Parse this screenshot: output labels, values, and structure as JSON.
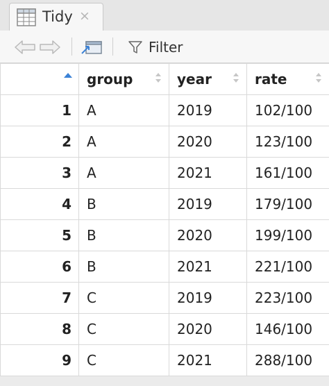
{
  "tab": {
    "title": "Tidy",
    "close_glyph": "×",
    "icon": "table-grid-icon"
  },
  "toolbar": {
    "back_icon": "back-arrow-icon",
    "forward_icon": "forward-arrow-icon",
    "popout_icon": "popout-window-icon",
    "filter_icon": "funnel-icon",
    "filter_label": "Filter"
  },
  "table": {
    "columns": [
      "group",
      "year",
      "rate"
    ],
    "rows": [
      {
        "n": "1",
        "group": "A",
        "year": "2019",
        "rate": "102/100"
      },
      {
        "n": "2",
        "group": "A",
        "year": "2020",
        "rate": "123/100"
      },
      {
        "n": "3",
        "group": "A",
        "year": "2021",
        "rate": "161/100"
      },
      {
        "n": "4",
        "group": "B",
        "year": "2019",
        "rate": "179/100"
      },
      {
        "n": "5",
        "group": "B",
        "year": "2020",
        "rate": "199/100"
      },
      {
        "n": "6",
        "group": "B",
        "year": "2021",
        "rate": "221/100"
      },
      {
        "n": "7",
        "group": "C",
        "year": "2019",
        "rate": "223/100"
      },
      {
        "n": "8",
        "group": "C",
        "year": "2020",
        "rate": "146/100"
      },
      {
        "n": "9",
        "group": "C",
        "year": "2021",
        "rate": "288/100"
      }
    ]
  },
  "colors": {
    "accent": "#3b82d6",
    "border": "#d9d9d9",
    "toolbar": "#f7f7f7"
  }
}
